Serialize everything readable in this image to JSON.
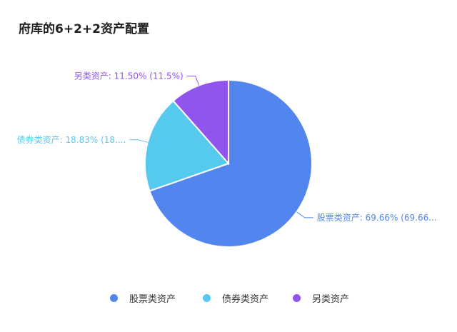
{
  "chart_data": {
    "type": "pie",
    "title": "府库的6+2+2资产配置",
    "slices": [
      {
        "name": "股票类资产",
        "value": 69.66,
        "label": "股票类资产: 69.66% (69.66...",
        "color": "#5286EE"
      },
      {
        "name": "债券类资产",
        "value": 18.83,
        "label": "债券类资产: 18.83% (18....",
        "color": "#56C9EF"
      },
      {
        "name": "另类资产",
        "value": 11.5,
        "label": "另类资产: 11.50% (11.5%)",
        "color": "#9155EE"
      }
    ],
    "legend": {
      "position": "bottom",
      "items": [
        "股票类资产",
        "债券类资产",
        "另类资产"
      ]
    }
  }
}
